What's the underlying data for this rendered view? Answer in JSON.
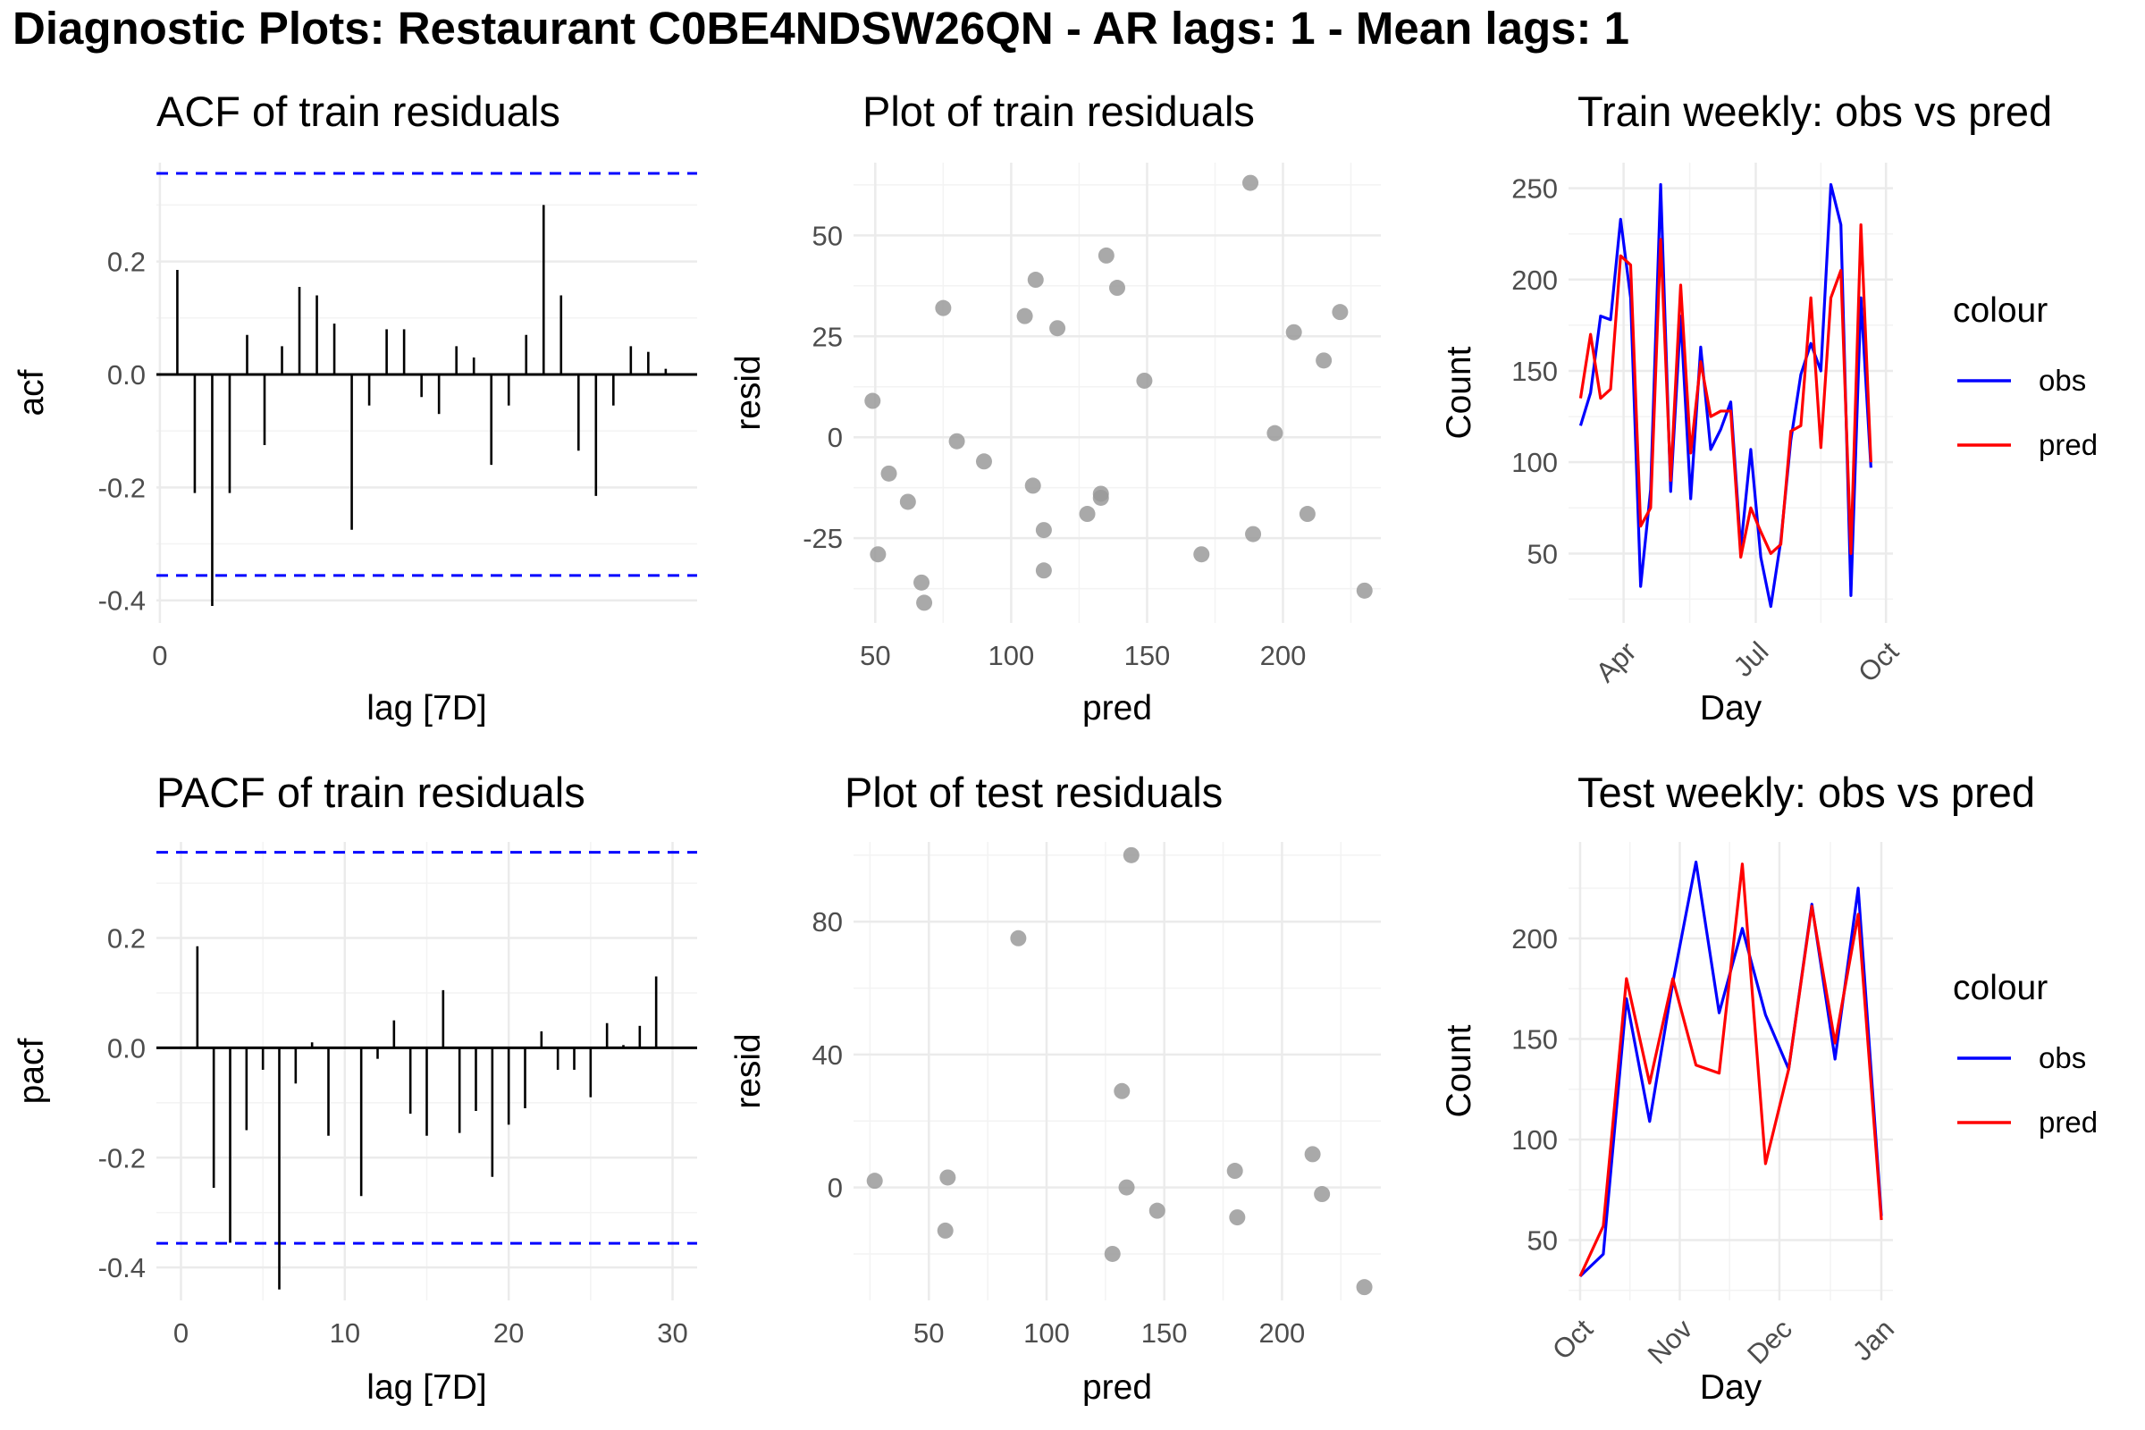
{
  "title": "Diagnostic Plots: Restaurant C0BE4NDSW26QN - AR lags: 1 - Mean lags: 1",
  "colors": {
    "obs": "#0000ff",
    "pred": "#ff0000",
    "confband": "#0000ff",
    "point": "#9a9a9a",
    "grid": "#ebebeb",
    "text": "#4d4d4d"
  },
  "chart_data": [
    {
      "id": "acf",
      "type": "bar",
      "title": "ACF of train residuals",
      "xlabel": "lag [7D]",
      "ylabel": "acf",
      "x": [
        1,
        2,
        3,
        4,
        5,
        6,
        7,
        8,
        9,
        10,
        11,
        12,
        13,
        14,
        15,
        16,
        17,
        18,
        19,
        20,
        21,
        22,
        23,
        24,
        25,
        26,
        27,
        28,
        29,
        30
      ],
      "values": [
        0.185,
        -0.21,
        -0.41,
        -0.21,
        0.07,
        -0.125,
        0.05,
        0.155,
        0.14,
        0.09,
        -0.275,
        -0.055,
        0.08,
        0.08,
        -0.04,
        -0.07,
        0.05,
        0.03,
        -0.16,
        -0.055,
        0.07,
        0.3,
        0.14,
        -0.135,
        -0.215,
        -0.055,
        0.05,
        0.04,
        0.01,
        0
      ],
      "conf_band": [
        -0.356,
        0.356
      ],
      "xticks": [
        0
      ],
      "yticks": [
        -0.4,
        -0.2,
        0.0,
        0.2
      ],
      "ytick_labels": [
        "-0.4",
        "-0.2",
        "0.0",
        "0.2"
      ],
      "xlim": [
        -0.2,
        30.8
      ],
      "ylim": [
        -0.44,
        0.375
      ],
      "grid": true
    },
    {
      "id": "pacf",
      "type": "bar",
      "title": "PACF of train residuals",
      "xlabel": "lag [7D]",
      "ylabel": "pacf",
      "x": [
        1,
        2,
        3,
        4,
        5,
        6,
        7,
        8,
        9,
        10,
        11,
        12,
        13,
        14,
        15,
        16,
        17,
        18,
        19,
        20,
        21,
        22,
        23,
        24,
        25,
        26,
        27,
        28,
        29,
        30
      ],
      "values": [
        0.185,
        -0.255,
        -0.355,
        -0.15,
        -0.04,
        -0.44,
        -0.065,
        0.01,
        -0.16,
        0,
        -0.27,
        -0.02,
        0.05,
        -0.12,
        -0.16,
        0.105,
        -0.155,
        -0.115,
        -0.235,
        -0.14,
        -0.11,
        0.03,
        -0.04,
        -0.04,
        -0.09,
        0.045,
        0.005,
        0.04,
        0.13,
        0
      ],
      "conf_band": [
        -0.356,
        0.356
      ],
      "xticks": [
        0,
        10,
        20,
        30
      ],
      "yticks": [
        -0.4,
        -0.2,
        0.0,
        0.2
      ],
      "ytick_labels": [
        "-0.4",
        "-0.2",
        "0.0",
        "0.2"
      ],
      "xlim": [
        -1.5,
        31.5
      ],
      "ylim": [
        -0.46,
        0.375
      ],
      "grid": true
    },
    {
      "id": "train_resid",
      "type": "scatter",
      "title": "Plot of train residuals",
      "xlabel": "pred",
      "ylabel": "resid",
      "points": [
        [
          49,
          9
        ],
        [
          51,
          -29
        ],
        [
          55,
          -9
        ],
        [
          62,
          -16
        ],
        [
          67,
          -36
        ],
        [
          68,
          -41
        ],
        [
          75,
          32
        ],
        [
          80,
          -1
        ],
        [
          90,
          -6
        ],
        [
          105,
          30
        ],
        [
          108,
          -12
        ],
        [
          109,
          39
        ],
        [
          112,
          -23
        ],
        [
          112,
          -33
        ],
        [
          117,
          27
        ],
        [
          128,
          -19
        ],
        [
          133,
          -14
        ],
        [
          133,
          -15
        ],
        [
          135,
          45
        ],
        [
          139,
          37
        ],
        [
          149,
          14
        ],
        [
          170,
          -29
        ],
        [
          188,
          63
        ],
        [
          189,
          -24
        ],
        [
          197,
          1
        ],
        [
          204,
          26
        ],
        [
          209,
          -19
        ],
        [
          215,
          19
        ],
        [
          221,
          31
        ],
        [
          230,
          -38
        ]
      ],
      "xticks": [
        50,
        100,
        150,
        200
      ],
      "yticks": [
        -25,
        0,
        25,
        50
      ],
      "xlim": [
        42,
        236
      ],
      "ylim": [
        -46,
        68
      ],
      "grid": true
    },
    {
      "id": "test_resid",
      "type": "scatter",
      "title": "Plot of test residuals",
      "xlabel": "pred",
      "ylabel": "resid",
      "points": [
        [
          27,
          2
        ],
        [
          57,
          -13
        ],
        [
          58,
          3
        ],
        [
          88,
          75
        ],
        [
          128,
          -20
        ],
        [
          132,
          29
        ],
        [
          134,
          0
        ],
        [
          136,
          100
        ],
        [
          147,
          -7
        ],
        [
          180,
          5
        ],
        [
          181,
          -9
        ],
        [
          213,
          10
        ],
        [
          217,
          -2
        ],
        [
          235,
          -30
        ]
      ],
      "xticks": [
        50,
        100,
        150,
        200
      ],
      "yticks": [
        0,
        40,
        80
      ],
      "xlim": [
        18,
        242
      ],
      "ylim": [
        -34,
        104
      ],
      "grid": true
    },
    {
      "id": "train_weekly",
      "type": "line",
      "title": "Train weekly: obs vs pred",
      "xlabel": "Day",
      "ylabel": "Count",
      "series": [
        {
          "name": "obs",
          "color": "#0000ff",
          "values": [
            120,
            138,
            180,
            178,
            233,
            190,
            32,
            85,
            252,
            84,
            180,
            80,
            163,
            107,
            118,
            133,
            53,
            107,
            48,
            21,
            57,
            112,
            148,
            165,
            150,
            252,
            230,
            27,
            190,
            97
          ]
        },
        {
          "name": "pred",
          "color": "#ff0000",
          "values": [
            135,
            170,
            135,
            140,
            213,
            208,
            65,
            75,
            222,
            90,
            197,
            105,
            155,
            125,
            128,
            128,
            48,
            75,
            62,
            50,
            55,
            117,
            120,
            190,
            108,
            190,
            205,
            50,
            230,
            100
          ]
        }
      ],
      "x_start": 0,
      "x_step": 1,
      "xticks": [
        4.3,
        17.5,
        30.5
      ],
      "xtick_labels": [
        "Apr",
        "Jul",
        "Oct"
      ],
      "yticks": [
        50,
        100,
        150,
        200,
        250
      ],
      "xlim": [
        -1.2,
        31.2
      ],
      "ylim": [
        12,
        264
      ],
      "grid": true,
      "legend": {
        "title": "colour",
        "entries": [
          "obs",
          "pred"
        ],
        "position": "right"
      }
    },
    {
      "id": "test_weekly",
      "type": "line",
      "title": "Test weekly: obs vs pred",
      "xlabel": "Day",
      "ylabel": "Count",
      "series": [
        {
          "name": "obs",
          "color": "#0000ff",
          "values": [
            32,
            43,
            170,
            109,
            178,
            238,
            163,
            205,
            162,
            135,
            217,
            140,
            225,
            62
          ]
        },
        {
          "name": "pred",
          "color": "#ff0000",
          "values": [
            32,
            57,
            180,
            128,
            180,
            137,
            133,
            237,
            88,
            135,
            216,
            148,
            212,
            60
          ]
        }
      ],
      "x_start": 0,
      "x_step": 1,
      "xticks": [
        0,
        4.3,
        8.6,
        13
      ],
      "xtick_labels": [
        "Oct",
        "Nov",
        "Dec",
        "Jan"
      ],
      "yticks": [
        50,
        100,
        150,
        200
      ],
      "xlim": [
        -0.5,
        13.5
      ],
      "ylim": [
        20,
        248
      ],
      "grid": true,
      "legend": {
        "title": "colour",
        "entries": [
          "obs",
          "pred"
        ],
        "position": "right"
      }
    }
  ]
}
